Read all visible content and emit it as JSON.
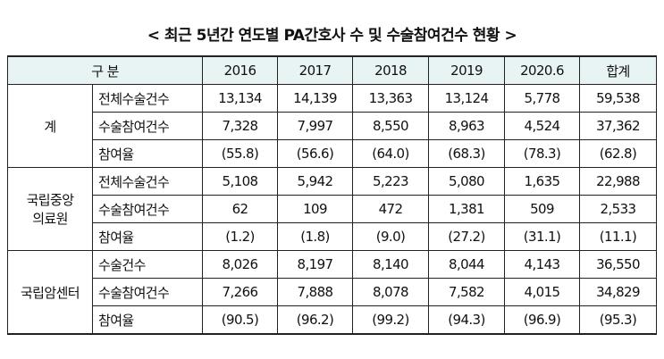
{
  "title": "< 최근 5년간 연도별 PA간호사 수 및 수술참여건수 현황 >",
  "headers": [
    "구 분",
    "2016",
    "2017",
    "2018",
    "2019",
    "2020.6",
    "합계"
  ],
  "groups": [
    {
      "name": "계",
      "rows": [
        {
          "label": "전체수술건수",
          "values": [
            "13,134",
            "14,139",
            "13,363",
            "13,124",
            "5,778",
            "59,538"
          ]
        },
        {
          "label": "수술참여건수",
          "values": [
            "7,328",
            "7,997",
            "8,550",
            "8,963",
            "4,524",
            "37,362"
          ]
        },
        {
          "label": "참여율",
          "values": [
            "(55.8)",
            "(56.6)",
            "(64.0)",
            "(68.3)",
            "(78.3)",
            "(62.8)"
          ]
        }
      ]
    },
    {
      "name": "국립중앙\n의료원",
      "rows": [
        {
          "label": "전체수술건수",
          "values": [
            "5,108",
            "5,942",
            "5,223",
            "5,080",
            "1,635",
            "22,988"
          ]
        },
        {
          "label": "수술참여건수",
          "values": [
            "62",
            "109",
            "472",
            "1,381",
            "509",
            "2,533"
          ]
        },
        {
          "label": "참여율",
          "values": [
            "(1.2)",
            "(1.8)",
            "(9.0)",
            "(27.2)",
            "(31.1)",
            "(11.1)"
          ]
        }
      ]
    },
    {
      "name": "국립암센터",
      "rows": [
        {
          "label": "수술건수",
          "values": [
            "8,026",
            "8,197",
            "8,140",
            "8,044",
            "4,143",
            "36,550"
          ]
        },
        {
          "label": "수술참여건수",
          "values": [
            "7,266",
            "7,888",
            "8,078",
            "7,582",
            "4,015",
            "34,829"
          ]
        },
        {
          "label": "참여율",
          "values": [
            "(90.5)",
            "(96.2)",
            "(99.2)",
            "(94.3)",
            "(96.9)",
            "(95.3)"
          ]
        }
      ]
    }
  ]
}
